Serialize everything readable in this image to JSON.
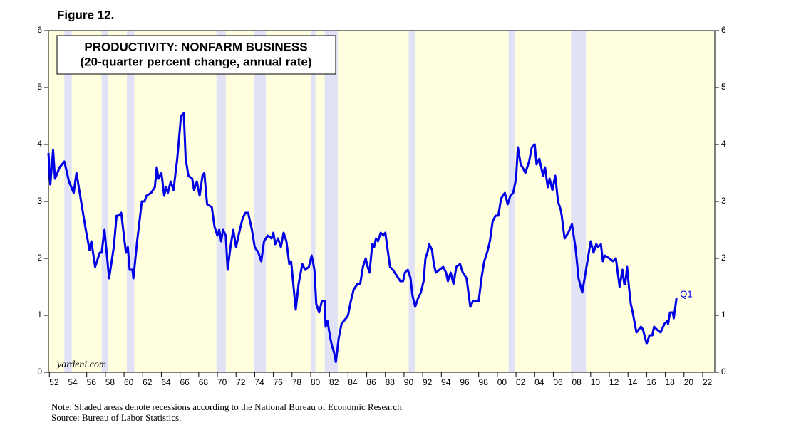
{
  "chart_data": {
    "type": "line",
    "figure_label": "Figure 12.",
    "title": "PRODUCTIVITY: NONFARM BUSINESS",
    "subtitle": "(20-quarter percent change, annual rate)",
    "watermark": "yardeni.com",
    "annotation": "Q1",
    "notes": [
      "Note: Shaded areas denote recessions according to the National Bureau of Economic Research.",
      "Source: Bureau of Labor Statistics."
    ],
    "color": "#0000e6",
    "background": "#ffffe0",
    "recession_color": "#e2e2f6",
    "recessions": [
      [
        1953.6,
        1954.4
      ],
      [
        1957.6,
        1958.3
      ],
      [
        1960.3,
        1961.1
      ],
      [
        1969.9,
        1970.9
      ],
      [
        1973.9,
        1975.2
      ],
      [
        1980.0,
        1980.5
      ],
      [
        1981.5,
        1982.9
      ],
      [
        1990.5,
        1991.2
      ],
      [
        2001.2,
        2001.9
      ],
      [
        2007.9,
        2009.5
      ]
    ],
    "x": [
      1951.9,
      1952.1,
      1952.4,
      1952.6,
      1953.1,
      1953.6,
      1954.1,
      1954.6,
      1954.9,
      1955.4,
      1955.9,
      1956.3,
      1956.5,
      1956.9,
      1957.4,
      1957.6,
      1957.9,
      1958.4,
      1958.9,
      1959.2,
      1959.4,
      1959.7,
      1960.2,
      1960.4,
      1960.6,
      1960.9,
      1961.0,
      1961.4,
      1961.9,
      1962.2,
      1962.4,
      1962.9,
      1963.3,
      1963.5,
      1963.7,
      1964.0,
      1964.3,
      1964.5,
      1964.7,
      1965.0,
      1965.3,
      1965.7,
      1966.1,
      1966.4,
      1966.6,
      1966.9,
      1967.3,
      1967.5,
      1967.8,
      1968.1,
      1968.4,
      1968.6,
      1968.9,
      1969.4,
      1969.7,
      1970.0,
      1970.2,
      1970.4,
      1970.6,
      1970.9,
      1971.1,
      1971.4,
      1971.7,
      1972.0,
      1972.4,
      1972.7,
      1973.0,
      1973.3,
      1973.7,
      1974.0,
      1974.4,
      1974.7,
      1975.0,
      1975.4,
      1975.8,
      1976.0,
      1976.2,
      1976.5,
      1976.8,
      1977.1,
      1977.4,
      1977.7,
      1977.9,
      1978.4,
      1978.7,
      1979.1,
      1979.4,
      1979.8,
      1980.1,
      1980.4,
      1980.6,
      1980.9,
      1981.2,
      1981.5,
      1981.6,
      1981.8,
      1982.1,
      1982.3,
      1982.5,
      1982.7,
      1983.0,
      1983.3,
      1983.8,
      1984.0,
      1984.3,
      1984.6,
      1985.0,
      1985.3,
      1985.6,
      1985.9,
      1986.1,
      1986.3,
      1986.6,
      1986.8,
      1987.0,
      1987.2,
      1987.5,
      1987.8,
      1988.0,
      1988.2,
      1988.5,
      1988.8,
      1989.2,
      1989.6,
      1989.9,
      1990.1,
      1990.4,
      1990.7,
      1990.9,
      1991.2,
      1991.5,
      1991.8,
      1992.1,
      1992.3,
      1992.5,
      1992.7,
      1993.0,
      1993.2,
      1993.4,
      1993.8,
      1994.2,
      1994.5,
      1994.7,
      1995.0,
      1995.3,
      1995.6,
      1996.0,
      1996.3,
      1996.7,
      1997.1,
      1997.4,
      1997.7,
      1998.0,
      1998.3,
      1998.6,
      1998.9,
      1999.2,
      1999.5,
      1999.8,
      2000.1,
      2000.4,
      2000.8,
      2001.1,
      2001.4,
      2001.7,
      2002.0,
      2002.2,
      2002.5,
      2002.7,
      2003.0,
      2003.4,
      2003.7,
      2004.0,
      2004.2,
      2004.5,
      2004.9,
      2005.1,
      2005.4,
      2005.6,
      2005.9,
      2006.2,
      2006.5,
      2006.8,
      2006.9,
      2007.2,
      2007.6,
      2008.0,
      2008.4,
      2008.7,
      2009.1,
      2009.4,
      2009.7,
      2010.0,
      2010.3,
      2010.6,
      2010.8,
      2011.1,
      2011.3,
      2011.5,
      2012.0,
      2012.4,
      2012.7,
      2012.9,
      2013.1,
      2013.4,
      2013.6,
      2013.7,
      2013.9,
      2014.1,
      2014.3,
      2014.5,
      2014.9,
      2015.4,
      2015.6,
      2016.0,
      2016.3,
      2016.6,
      2016.8,
      2017.1,
      2017.5,
      2017.9,
      2018.2,
      2018.3,
      2018.5,
      2018.8,
      2018.9,
      2019.2
    ],
    "values": [
      3.85,
      3.3,
      3.9,
      3.4,
      3.6,
      3.7,
      3.35,
      3.15,
      3.5,
      3.0,
      2.5,
      2.15,
      2.3,
      1.85,
      2.1,
      2.1,
      2.5,
      1.65,
      2.2,
      2.75,
      2.75,
      2.8,
      2.1,
      2.2,
      1.8,
      1.8,
      1.65,
      2.3,
      3.0,
      3.0,
      3.1,
      3.15,
      3.25,
      3.6,
      3.4,
      3.5,
      3.1,
      3.25,
      3.15,
      3.35,
      3.2,
      3.75,
      4.5,
      4.55,
      3.75,
      3.45,
      3.4,
      3.2,
      3.35,
      3.1,
      3.45,
      3.5,
      2.95,
      2.9,
      2.55,
      2.4,
      2.5,
      2.3,
      2.5,
      2.4,
      1.8,
      2.2,
      2.5,
      2.2,
      2.5,
      2.7,
      2.8,
      2.8,
      2.5,
      2.2,
      2.1,
      1.95,
      2.3,
      2.4,
      2.35,
      2.45,
      2.25,
      2.35,
      2.2,
      2.45,
      2.3,
      1.9,
      1.95,
      1.1,
      1.55,
      1.9,
      1.8,
      1.85,
      2.05,
      1.8,
      1.2,
      1.05,
      1.25,
      1.25,
      0.8,
      0.9,
      0.6,
      0.45,
      0.35,
      0.18,
      0.6,
      0.85,
      0.95,
      1.0,
      1.25,
      1.45,
      1.55,
      1.55,
      1.85,
      2.0,
      1.85,
      1.75,
      2.25,
      2.2,
      2.35,
      2.3,
      2.45,
      2.4,
      2.45,
      2.2,
      1.85,
      1.8,
      1.7,
      1.6,
      1.6,
      1.75,
      1.8,
      1.65,
      1.35,
      1.15,
      1.3,
      1.4,
      1.6,
      2.0,
      2.1,
      2.25,
      2.15,
      1.9,
      1.75,
      1.8,
      1.85,
      1.75,
      1.6,
      1.75,
      1.55,
      1.85,
      1.9,
      1.75,
      1.65,
      1.15,
      1.25,
      1.25,
      1.25,
      1.65,
      1.95,
      2.1,
      2.3,
      2.65,
      2.75,
      2.75,
      3.05,
      3.15,
      2.95,
      3.1,
      3.15,
      3.4,
      3.95,
      3.65,
      3.6,
      3.5,
      3.7,
      3.95,
      4.0,
      3.65,
      3.75,
      3.45,
      3.6,
      3.25,
      3.4,
      3.2,
      3.45,
      3.0,
      2.85,
      2.75,
      2.35,
      2.45,
      2.6,
      2.15,
      1.65,
      1.4,
      1.7,
      2.0,
      2.3,
      2.1,
      2.25,
      2.2,
      2.25,
      1.95,
      2.05,
      2.0,
      1.95,
      2.0,
      1.75,
      1.5,
      1.8,
      1.55,
      1.55,
      1.85,
      1.5,
      1.2,
      1.05,
      0.7,
      0.8,
      0.75,
      0.5,
      0.65,
      0.65,
      0.8,
      0.75,
      0.7,
      0.85,
      0.9,
      0.85,
      1.05,
      1.05,
      0.95,
      1.3
    ],
    "xlim": [
      1951.9,
      2023.3
    ],
    "ylim": [
      0,
      6
    ],
    "xticks": [
      {
        "value": 1952,
        "label": "52"
      },
      {
        "value": 1954,
        "label": "54"
      },
      {
        "value": 1956,
        "label": "56"
      },
      {
        "value": 1958,
        "label": "58"
      },
      {
        "value": 1960,
        "label": "60"
      },
      {
        "value": 1962,
        "label": "62"
      },
      {
        "value": 1964,
        "label": "64"
      },
      {
        "value": 1966,
        "label": "66"
      },
      {
        "value": 1968,
        "label": "68"
      },
      {
        "value": 1970,
        "label": "70"
      },
      {
        "value": 1972,
        "label": "72"
      },
      {
        "value": 1974,
        "label": "74"
      },
      {
        "value": 1976,
        "label": "76"
      },
      {
        "value": 1978,
        "label": "78"
      },
      {
        "value": 1980,
        "label": "80"
      },
      {
        "value": 1982,
        "label": "82"
      },
      {
        "value": 1984,
        "label": "84"
      },
      {
        "value": 1986,
        "label": "86"
      },
      {
        "value": 1988,
        "label": "88"
      },
      {
        "value": 1990,
        "label": "90"
      },
      {
        "value": 1992,
        "label": "92"
      },
      {
        "value": 1994,
        "label": "94"
      },
      {
        "value": 1996,
        "label": "96"
      },
      {
        "value": 1998,
        "label": "98"
      },
      {
        "value": 2000,
        "label": "00"
      },
      {
        "value": 2002,
        "label": "02"
      },
      {
        "value": 2004,
        "label": "04"
      },
      {
        "value": 2006,
        "label": "06"
      },
      {
        "value": 2008,
        "label": "08"
      },
      {
        "value": 2010,
        "label": "10"
      },
      {
        "value": 2012,
        "label": "12"
      },
      {
        "value": 2014,
        "label": "14"
      },
      {
        "value": 2016,
        "label": "16"
      },
      {
        "value": 2018,
        "label": "18"
      },
      {
        "value": 2020,
        "label": "20"
      },
      {
        "value": 2022,
        "label": "22"
      }
    ],
    "yticks": [
      0,
      1,
      2,
      3,
      4,
      5,
      6
    ]
  }
}
